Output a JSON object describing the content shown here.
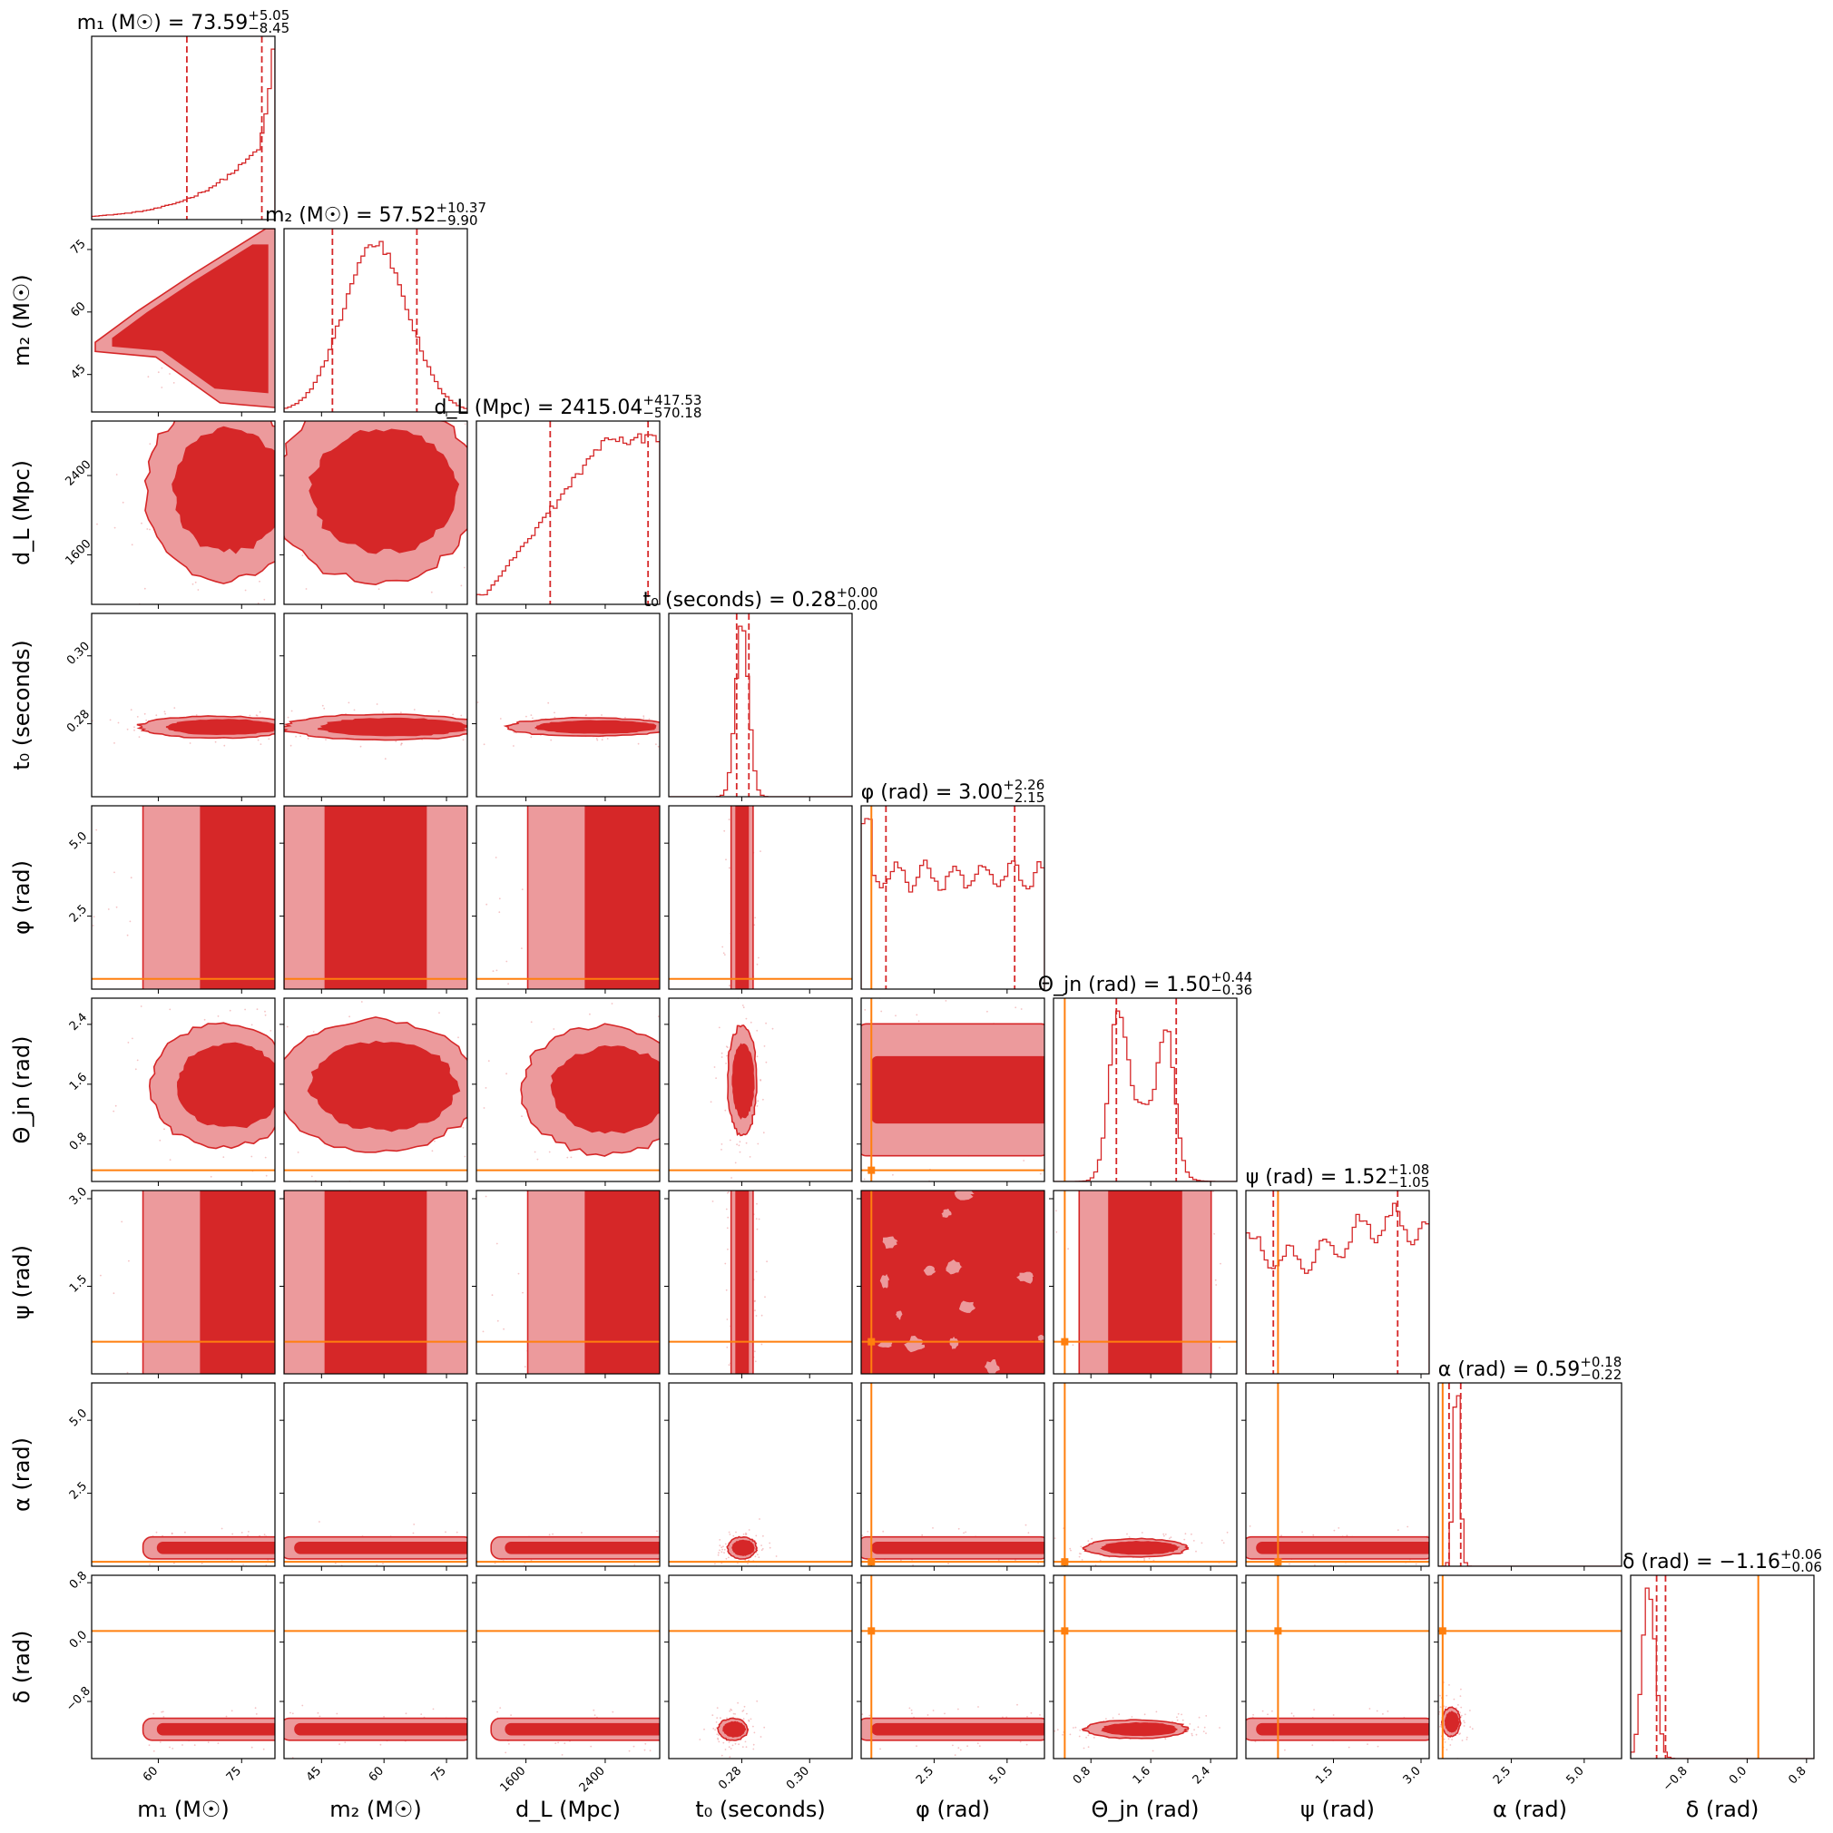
{
  "chart_data": {
    "type": "corner",
    "colors": {
      "posterior": "#d62728",
      "posterior_light": "#ec9a9c",
      "injection": "#ff7f0e",
      "axes": "#000000"
    },
    "parameters": [
      {
        "key": "m1",
        "title_main": "m₁ (M☉) = 73.59",
        "title_sup": "+5.05",
        "title_sub": "−8.45",
        "label": "m₁ (M☉)",
        "range": [
          48,
          81
        ],
        "ticks": [
          60,
          75
        ],
        "tick_labels": [
          "60",
          "75"
        ],
        "median": 73.59,
        "ci": [
          65.14,
          78.64
        ],
        "injection": null
      },
      {
        "key": "m2",
        "title_main": "m₂ (M☉) = 57.52",
        "title_sup": "+10.37",
        "title_sub": "−9.90",
        "label": "m₂ (M☉)",
        "range": [
          36,
          80
        ],
        "ticks": [
          45,
          60,
          75
        ],
        "tick_labels": [
          "45",
          "60",
          "75"
        ],
        "median": 57.52,
        "ci": [
          47.62,
          67.89
        ],
        "injection": null
      },
      {
        "key": "dL",
        "title_main": "d_L (Mpc) = 2415.04",
        "title_sup": "+417.53",
        "title_sub": "−570.18",
        "label": "d_L (Mpc)",
        "range": [
          1100,
          2950
        ],
        "ticks": [
          1600,
          2400
        ],
        "tick_labels": [
          "1600",
          "2400"
        ],
        "median": 2415.04,
        "ci": [
          1844.86,
          2832.57
        ],
        "injection": null
      },
      {
        "key": "t0",
        "title_main": "t₀ (seconds) = 0.28",
        "title_sup": "+0.00",
        "title_sub": "−0.00",
        "label": "t₀ (seconds)",
        "range": [
          0.2585,
          0.3125
        ],
        "ticks": [
          0.28,
          0.3
        ],
        "tick_labels": [
          "0.28",
          "0.30"
        ],
        "median": 0.2803,
        "ci": [
          0.2785,
          0.2821
        ],
        "injection": null
      },
      {
        "key": "phi",
        "title_main": "φ (rad) = 3.00",
        "title_sup": "+2.26",
        "title_sub": "−2.15",
        "label": "φ (rad)",
        "range": [
          0.0,
          6.28
        ],
        "ticks": [
          2.5,
          5.0
        ],
        "tick_labels": [
          "2.5",
          "5.0"
        ],
        "median": 3.0,
        "ci": [
          0.85,
          5.26
        ],
        "injection": 0.35
      },
      {
        "key": "theta_jn",
        "title_main": "Θ_jn (rad) = 1.50",
        "title_sup": "+0.44",
        "title_sub": "−0.36",
        "label": "Θ_jn (rad)",
        "range": [
          0.3,
          2.75
        ],
        "ticks": [
          0.8,
          1.6,
          2.4
        ],
        "tick_labels": [
          "0.8",
          "1.6",
          "2.4"
        ],
        "median": 1.5,
        "ci": [
          1.14,
          1.94
        ],
        "injection": 0.45
      },
      {
        "key": "psi",
        "title_main": "ψ (rad) = 1.52",
        "title_sup": "+1.08",
        "title_sub": "−1.05",
        "label": "ψ (rad)",
        "range": [
          0.0,
          3.14
        ],
        "ticks": [
          1.5,
          3.0
        ],
        "tick_labels": [
          "1.5",
          "3.0"
        ],
        "median": 1.52,
        "ci": [
          0.47,
          2.6
        ],
        "injection": 0.55
      },
      {
        "key": "alpha",
        "title_main": "α (rad) = 0.59",
        "title_sup": "+0.18",
        "title_sub": "−0.22",
        "label": "α (rad)",
        "range": [
          0.0,
          6.28
        ],
        "ticks": [
          2.5,
          5.0
        ],
        "tick_labels": [
          "2.5",
          "5.0"
        ],
        "median": 0.59,
        "ci": [
          0.37,
          0.77
        ],
        "injection": 0.15
      },
      {
        "key": "delta",
        "title_main": "δ (rad) = −1.16",
        "title_sup": "+0.06",
        "title_sub": "−0.06",
        "label": "δ (rad)",
        "range": [
          -1.57,
          0.9
        ],
        "ticks": [
          -0.8,
          0.0,
          0.8
        ],
        "tick_labels": [
          "−0.8",
          "0.0",
          "0.8"
        ],
        "median": -1.16,
        "ci": [
          -1.22,
          -1.1
        ],
        "injection": 0.15
      }
    ]
  }
}
